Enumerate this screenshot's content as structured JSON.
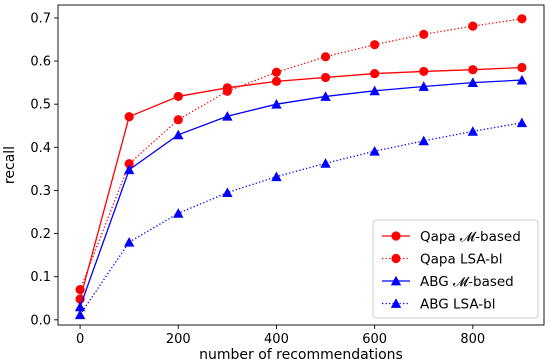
{
  "chart_data": {
    "type": "line",
    "xlabel": "number of recommendations",
    "ylabel": "recall",
    "xlim": [
      -45,
      945
    ],
    "ylim": [
      -0.012,
      0.73
    ],
    "xticks": [
      0,
      200,
      400,
      600,
      800
    ],
    "yticks": [
      0.0,
      0.1,
      0.2,
      0.3,
      0.4,
      0.5,
      0.6,
      0.7
    ],
    "ytick_labels": [
      "0.0",
      "0.1",
      "0.2",
      "0.3",
      "0.4",
      "0.5",
      "0.6",
      "0.7"
    ],
    "x": [
      0,
      100,
      200,
      300,
      400,
      500,
      600,
      700,
      800,
      900
    ],
    "legend_position": "lower-right",
    "grid": false,
    "series": [
      {
        "name": "Qapa 𝓜-based",
        "color": "#ff0000",
        "linestyle": "solid",
        "marker": "circle",
        "values": [
          0.048,
          0.471,
          0.518,
          0.538,
          0.553,
          0.562,
          0.571,
          0.576,
          0.58,
          0.585
        ]
      },
      {
        "name": "Qapa LSA-bl",
        "color": "#ff0000",
        "linestyle": "dotted",
        "marker": "circle",
        "values": [
          0.07,
          0.362,
          0.464,
          0.53,
          0.574,
          0.61,
          0.638,
          0.662,
          0.681,
          0.698
        ]
      },
      {
        "name": "ABG 𝓜-based",
        "color": "#0000ff",
        "linestyle": "solid",
        "marker": "triangle",
        "values": [
          0.03,
          0.348,
          0.429,
          0.472,
          0.5,
          0.518,
          0.531,
          0.541,
          0.55,
          0.556
        ]
      },
      {
        "name": "ABG LSA-bl",
        "color": "#0000ff",
        "linestyle": "dotted",
        "marker": "triangle",
        "values": [
          0.012,
          0.18,
          0.247,
          0.295,
          0.332,
          0.363,
          0.391,
          0.415,
          0.437,
          0.457
        ]
      }
    ]
  }
}
